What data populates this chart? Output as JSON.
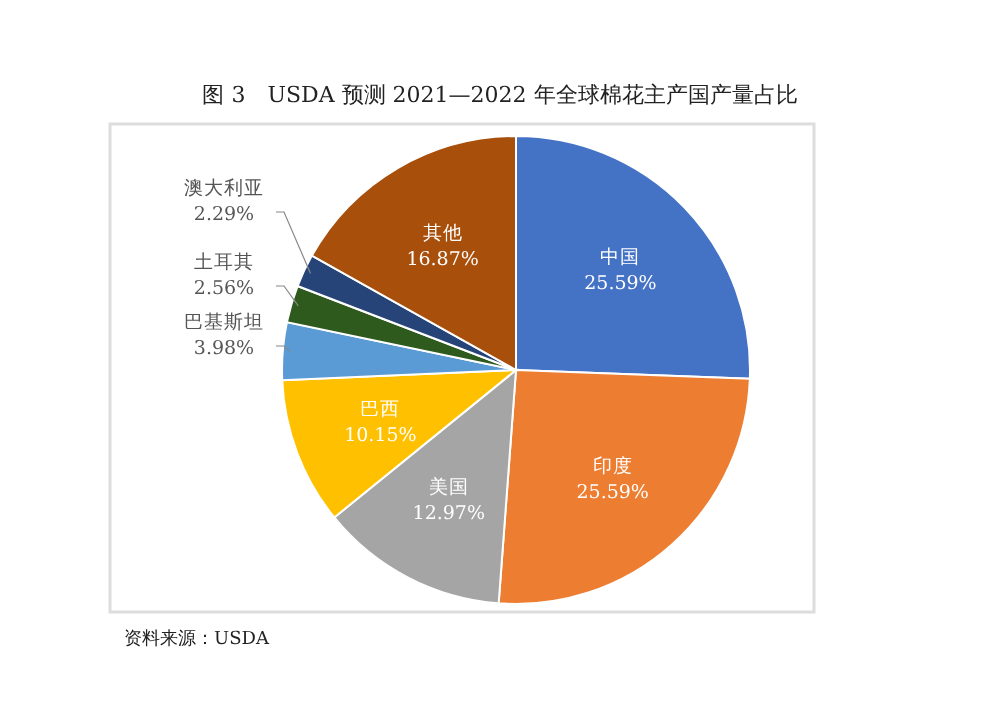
{
  "chart_data": {
    "type": "pie",
    "title": "图 3　USDA 预测 2021—2022 年全球棉花主产国产量占比",
    "categories": [
      "中国",
      "印度",
      "美国",
      "巴西",
      "巴基斯坦",
      "土耳其",
      "澳大利亚",
      "其他"
    ],
    "values": [
      25.59,
      25.59,
      12.97,
      10.15,
      3.98,
      2.56,
      2.29,
      16.87
    ],
    "colors": [
      "#4472c4",
      "#ed7d31",
      "#a5a5a5",
      "#ffc000",
      "#5b9bd5",
      "#2e5a1e",
      "#264478",
      "#a84f0c"
    ],
    "value_labels": [
      "25.59%",
      "25.59%",
      "12.97%",
      "10.15%",
      "3.98%",
      "2.56%",
      "2.29%",
      "16.87%"
    ],
    "annotations": [
      "资料来源：USDA"
    ]
  }
}
